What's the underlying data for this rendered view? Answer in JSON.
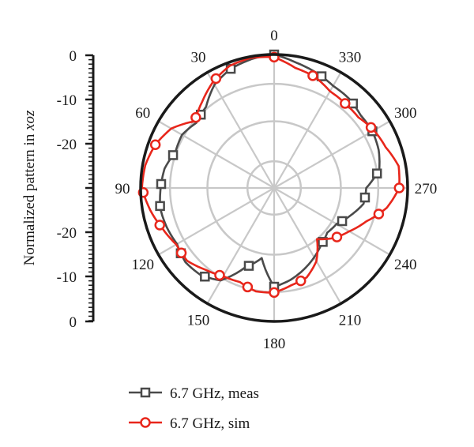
{
  "chart_data": {
    "type": "polar-line",
    "ylabel": "Normalized pattern in xoz",
    "ylabel_parts": {
      "prefix": "Normalized pattern in ",
      "italic": "xoz"
    },
    "angle_labels": [
      "0",
      "30",
      "60",
      "90",
      "120",
      "150",
      "180",
      "210",
      "240",
      "270",
      "300",
      "330"
    ],
    "angle_label_values": [
      0,
      30,
      60,
      90,
      120,
      150,
      180,
      210,
      240,
      270,
      300,
      330
    ],
    "angle_direction": "counterclockwise",
    "radial_range": [
      -30,
      0
    ],
    "radial_scale_labels_top": [
      "0",
      "-10",
      "-20"
    ],
    "radial_scale_labels_bottom": [
      "-20",
      "-10",
      "0"
    ],
    "grid": true,
    "legend_position": "bottom",
    "series": [
      {
        "name": "6.7 GHz, meas",
        "color": "#4a4a4a",
        "marker": "square",
        "angles": [
          0,
          10,
          20,
          30,
          40,
          50,
          60,
          70,
          80,
          90,
          100,
          110,
          120,
          130,
          140,
          150,
          160,
          170,
          180,
          190,
          200,
          210,
          220,
          230,
          240,
          250,
          260,
          270,
          280,
          290,
          300,
          310,
          320,
          330,
          340,
          350
        ],
        "values": [
          0.0,
          -0.6,
          -1.5,
          -3.2,
          -6.2,
          -7.2,
          -6.1,
          -6.4,
          -5.0,
          -4.5,
          -4.0,
          -4.3,
          -4.8,
          -4.0,
          -4.4,
          -6.0,
          -11.0,
          -14.0,
          -7.8,
          -9.0,
          -10.5,
          -12.0,
          -13.5,
          -14.4,
          -13.8,
          -11.8,
          -9.6,
          -9.3,
          -6.0,
          -5.0,
          -4.5,
          -4.6,
          -3.8,
          -3.5,
          -2.4,
          -1.4
        ],
        "marker_angles": [
          0,
          20,
          45,
          72,
          88,
          99,
          125,
          142,
          162,
          180,
          222,
          244,
          264,
          278,
          300,
          317,
          337
        ]
      },
      {
        "name": "6.7 GHz, sim",
        "color": "#e8261b",
        "marker": "circle",
        "angles": [
          0,
          10,
          20,
          30,
          40,
          50,
          60,
          70,
          80,
          90,
          100,
          110,
          120,
          130,
          140,
          150,
          160,
          170,
          180,
          190,
          200,
          210,
          220,
          230,
          240,
          250,
          260,
          270,
          280,
          290,
          300,
          310,
          320,
          330,
          340,
          350
        ],
        "values": [
          -0.6,
          -0.3,
          -0.8,
          -2.5,
          -4.8,
          -6.7,
          -3.3,
          -1.6,
          -0.6,
          -0.3,
          -1.7,
          -3.3,
          -4.6,
          -4.5,
          -6.0,
          -7.1,
          -7.5,
          -6.4,
          -6.5,
          -7.8,
          -8.6,
          -11.0,
          -15.0,
          -12.5,
          -10.5,
          -8.0,
          -4.3,
          -1.9,
          -1.6,
          -3.3,
          -4.1,
          -5.3,
          -5.2,
          -4.9,
          -3.4,
          -2.6
        ],
        "marker_angles": [
          0,
          28,
          48,
          70,
          92,
          108,
          125,
          148,
          165,
          180,
          196,
          232,
          256,
          270,
          302,
          320,
          341
        ]
      }
    ]
  }
}
